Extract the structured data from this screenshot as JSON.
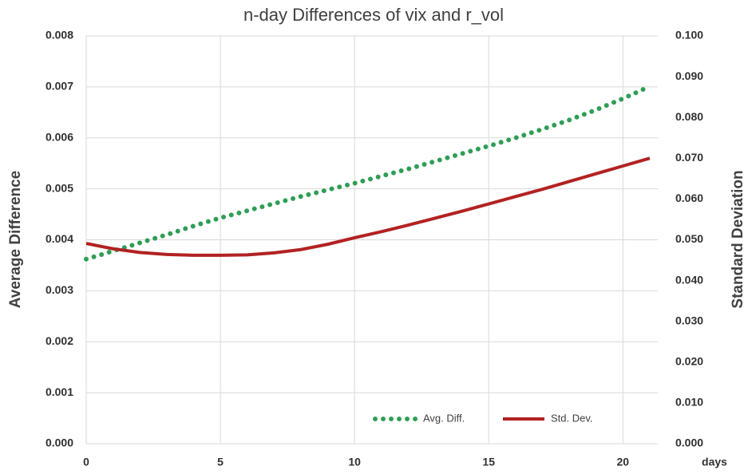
{
  "chart_data": {
    "type": "line",
    "title": "n-day Differences of vix and r_vol",
    "x_label": "days",
    "y_label": "Average Difference",
    "y2_label": "Standard Deviation",
    "x": [
      0,
      1,
      2,
      3,
      4,
      5,
      6,
      7,
      8,
      9,
      10,
      11,
      12,
      13,
      14,
      15,
      16,
      17,
      18,
      19,
      20,
      21
    ],
    "series": [
      {
        "name": "Avg. Diff.",
        "color": "#2e9e55",
        "style": "dotted",
        "values": [
          0.00362,
          0.00378,
          0.00394,
          0.0041,
          0.00427,
          0.00443,
          0.00457,
          0.00471,
          0.00485,
          0.00498,
          0.00511,
          0.00525,
          0.00539,
          0.00554,
          0.00569,
          0.00584,
          0.006,
          0.00617,
          0.00635,
          0.00655,
          0.00677,
          0.00701
        ]
      },
      {
        "name": "Std. Dev.",
        "color": "#b22222",
        "style": "solid",
        "axis": "y2",
        "values": [
          0.0491,
          0.0478,
          0.0469,
          0.0464,
          0.0462,
          0.0462,
          0.0463,
          0.0468,
          0.0476,
          0.0489,
          0.0505,
          0.052,
          0.0536,
          0.0553,
          0.057,
          0.0588,
          0.0606,
          0.0624,
          0.0643,
          0.0662,
          0.0681,
          0.07
        ]
      }
    ],
    "xlim": [
      0,
      21.3
    ],
    "xticks": [
      0,
      5,
      10,
      15,
      20
    ],
    "ylim": [
      0,
      0.008
    ],
    "yticks": [
      {
        "value": 0,
        "label": "0.000"
      },
      {
        "value": 0.001,
        "label": "0.001"
      },
      {
        "value": 0.002,
        "label": "0.002"
      },
      {
        "value": 0.003,
        "label": "0.003"
      },
      {
        "value": 0.004,
        "label": "0.004"
      },
      {
        "value": 0.005,
        "label": "0.005"
      },
      {
        "value": 0.006,
        "label": "0.006"
      },
      {
        "value": 0.007,
        "label": "0.007"
      },
      {
        "value": 0.008,
        "label": "0.008"
      }
    ],
    "y2lim": [
      0,
      0.1
    ],
    "y2ticks": [
      {
        "value": 0,
        "label": "0.000"
      },
      {
        "value": 0.01,
        "label": "0.010"
      },
      {
        "value": 0.02,
        "label": "0.020"
      },
      {
        "value": 0.03,
        "label": "0.030"
      },
      {
        "value": 0.04,
        "label": "0.040"
      },
      {
        "value": 0.05,
        "label": "0.050"
      },
      {
        "value": 0.06,
        "label": "0.060"
      },
      {
        "value": 0.07,
        "label": "0.070"
      },
      {
        "value": 0.08,
        "label": "0.080"
      },
      {
        "value": 0.09,
        "label": "0.090"
      },
      {
        "value": 0.1,
        "label": "0.100"
      }
    ],
    "grid": true,
    "legend": "bottom-right"
  }
}
